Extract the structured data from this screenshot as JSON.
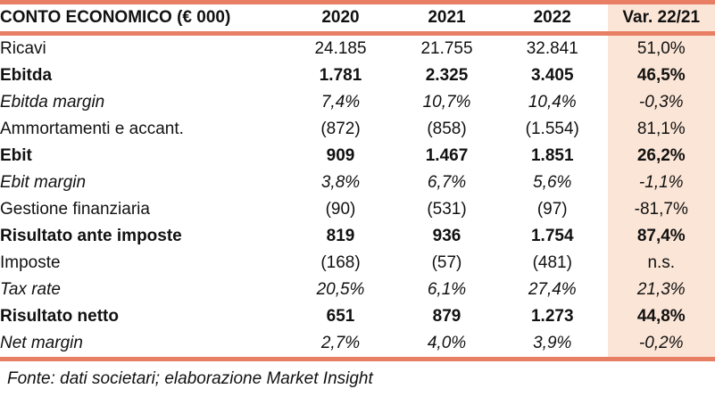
{
  "colors": {
    "accent_border": "#E87E64",
    "highlight_column_bg": "#FBE5D6",
    "text": "#111111",
    "background": "#FFFFFF"
  },
  "table": {
    "title": "CONTO ECONOMICO (€ 000)",
    "columns": [
      "2020",
      "2021",
      "2022",
      "Var. 22/21"
    ],
    "rows": [
      {
        "label": "Ricavi",
        "style": "regular",
        "values": [
          "24.185",
          "21.755",
          "32.841"
        ],
        "var": "51,0%"
      },
      {
        "label": "Ebitda",
        "style": "bold",
        "values": [
          "1.781",
          "2.325",
          "3.405"
        ],
        "var": "46,5%"
      },
      {
        "label": "Ebitda margin",
        "style": "italic",
        "values": [
          "7,4%",
          "10,7%",
          "10,4%"
        ],
        "var": "-0,3%"
      },
      {
        "label": "Ammortamenti e accant.",
        "style": "regular",
        "values": [
          "(872)",
          "(858)",
          "(1.554)"
        ],
        "var": "81,1%"
      },
      {
        "label": "Ebit",
        "style": "bold",
        "values": [
          "909",
          "1.467",
          "1.851"
        ],
        "var": "26,2%"
      },
      {
        "label": "Ebit margin",
        "style": "italic",
        "values": [
          "3,8%",
          "6,7%",
          "5,6%"
        ],
        "var": "-1,1%"
      },
      {
        "label": "Gestione finanziaria",
        "style": "regular",
        "values": [
          "(90)",
          "(531)",
          "(97)"
        ],
        "var": "-81,7%"
      },
      {
        "label": "Risultato ante imposte",
        "style": "bold",
        "values": [
          "819",
          "936",
          "1.754"
        ],
        "var": "87,4%"
      },
      {
        "label": "Imposte",
        "style": "regular",
        "values": [
          "(168)",
          "(57)",
          "(481)"
        ],
        "var": "n.s."
      },
      {
        "label": "Tax rate",
        "style": "italic",
        "values": [
          "20,5%",
          "6,1%",
          "27,4%"
        ],
        "var": "21,3%"
      },
      {
        "label": "Risultato netto",
        "style": "bold",
        "values": [
          "651",
          "879",
          "1.273"
        ],
        "var": "44,8%"
      },
      {
        "label": "Net margin",
        "style": "italic",
        "values": [
          "2,7%",
          "4,0%",
          "3,9%"
        ],
        "var": "-0,2%"
      }
    ],
    "footer": "Fonte: dati societari; elaborazione Market Insight"
  }
}
